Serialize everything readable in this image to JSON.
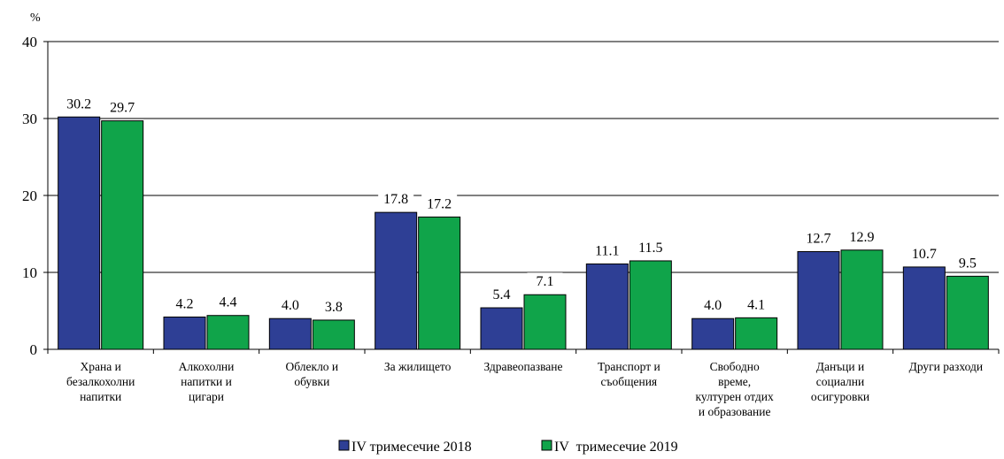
{
  "chart_data": {
    "type": "bar",
    "unit": "%",
    "ylim": [
      0,
      40
    ],
    "yticks": [
      0,
      10,
      20,
      30,
      40
    ],
    "grid": true,
    "legend_position": "bottom",
    "categories": [
      [
        "Храна и",
        "безалкохолни",
        "напитки"
      ],
      [
        "Алкохолни",
        "напитки и",
        "цигари"
      ],
      [
        "Облекло и",
        "обувки"
      ],
      [
        "За жилището"
      ],
      [
        "Здравеопазване"
      ],
      [
        "Транспорт и",
        "съобщения"
      ],
      [
        "Свободно",
        "време,",
        "културен отдих",
        "и образование"
      ],
      [
        "Данъци и",
        "социални",
        "осигуровки"
      ],
      [
        "Други разходи"
      ]
    ],
    "series": [
      {
        "name": "IV тримесечие 2018",
        "color": "#2e3f95",
        "values": [
          30.2,
          4.2,
          4.0,
          17.8,
          5.4,
          11.1,
          4.0,
          12.7,
          10.7
        ],
        "labels": [
          "30.2",
          "4.2",
          "4.0",
          "17.8",
          "5.4",
          "11.1",
          "4.0",
          "12.7",
          "10.7"
        ]
      },
      {
        "name": "IV  тримесечие 2019",
        "color": "#10a44a",
        "values": [
          29.7,
          4.4,
          3.8,
          17.2,
          7.1,
          11.5,
          4.1,
          12.9,
          9.5
        ],
        "labels": [
          "29.7",
          "4.4",
          "3.8",
          "17.2",
          "7.1",
          "11.5",
          "4.1",
          "12.9",
          "9.5"
        ]
      }
    ]
  }
}
